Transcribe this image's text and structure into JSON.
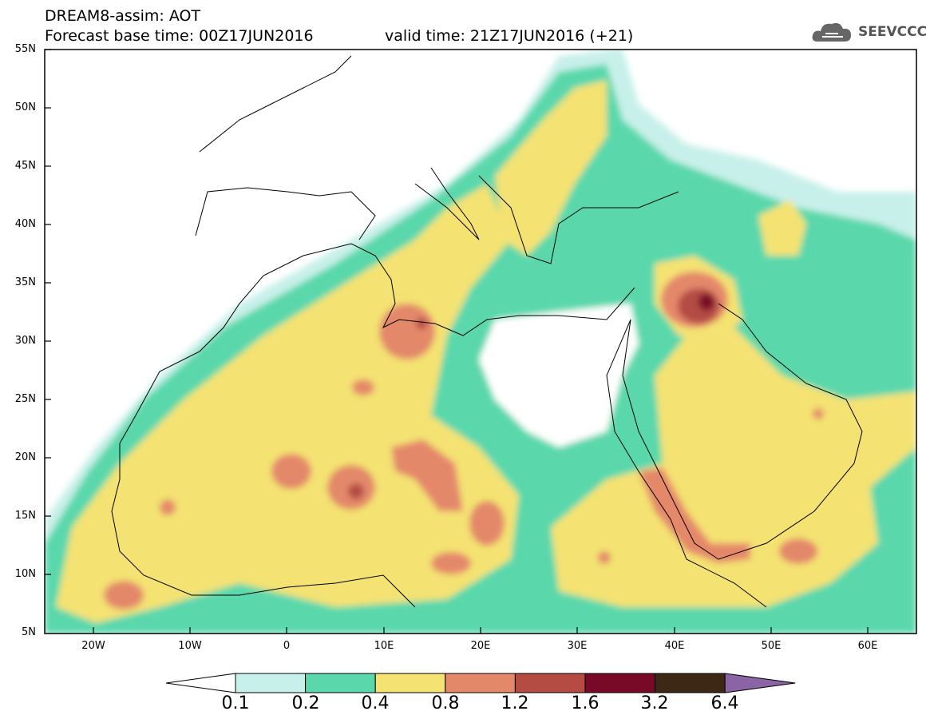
{
  "header": {
    "title_line1": "DREAM8-assim: AOT",
    "title_line2": "Forecast base time: 00Z17JUN2016",
    "valid_time": "valid time: 21Z17JUN2016 (+21)",
    "logo_text": "SEEVCCC"
  },
  "map": {
    "lon_range": [
      -25,
      65
    ],
    "lat_range": [
      5,
      55
    ],
    "y_ticks": [
      "55N",
      "50N",
      "45N",
      "40N",
      "35N",
      "30N",
      "25N",
      "20N",
      "15N",
      "10N",
      "5N"
    ],
    "x_ticks": [
      "20W",
      "10W",
      "0",
      "10E",
      "20E",
      "30E",
      "40E",
      "50E",
      "60E"
    ]
  },
  "colorbar": {
    "labels": [
      "0.1",
      "0.2",
      "0.4",
      "0.8",
      "1.2",
      "1.6",
      "3.2",
      "6.4"
    ],
    "colors": [
      "#ffffff",
      "#c8f0ea",
      "#5ad8ac",
      "#f4e272",
      "#e4886a",
      "#b44c44",
      "#780a28",
      "#3c2814",
      "#8a64a4"
    ]
  }
}
